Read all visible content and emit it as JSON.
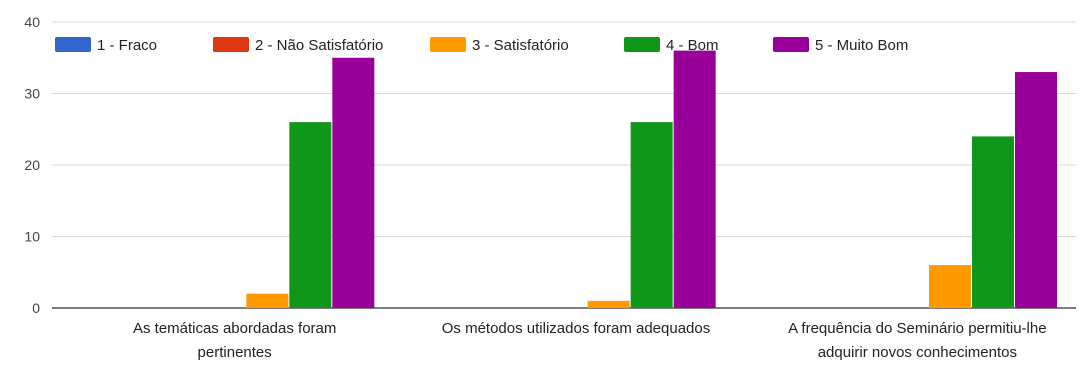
{
  "chart_data": {
    "type": "bar",
    "title": "",
    "xlabel": "",
    "ylabel": "",
    "ylim": [
      0,
      40
    ],
    "yticks": [
      0,
      10,
      20,
      30,
      40
    ],
    "grid": true,
    "legend_position": "top",
    "categories": [
      [
        "As temáticas abordadas foram",
        "pertinentes"
      ],
      [
        "Os métodos utilizados foram adequados"
      ],
      [
        "A frequência do Seminário permitiu-lhe",
        "adquirir novos conhecimentos"
      ]
    ],
    "series": [
      {
        "name": "1 - Fraco",
        "color": "#3366cc",
        "values": [
          0,
          0,
          0
        ]
      },
      {
        "name": "2 - Não Satisfatório",
        "color": "#dc3912",
        "values": [
          0,
          0,
          0
        ]
      },
      {
        "name": "3 - Satisfatório",
        "color": "#ff9900",
        "values": [
          2,
          1,
          6
        ]
      },
      {
        "name": "4 - Bom",
        "color": "#109618",
        "values": [
          26,
          26,
          24
        ]
      },
      {
        "name": "5 - Muito Bom",
        "color": "#990099",
        "values": [
          35,
          36,
          33
        ]
      }
    ]
  }
}
